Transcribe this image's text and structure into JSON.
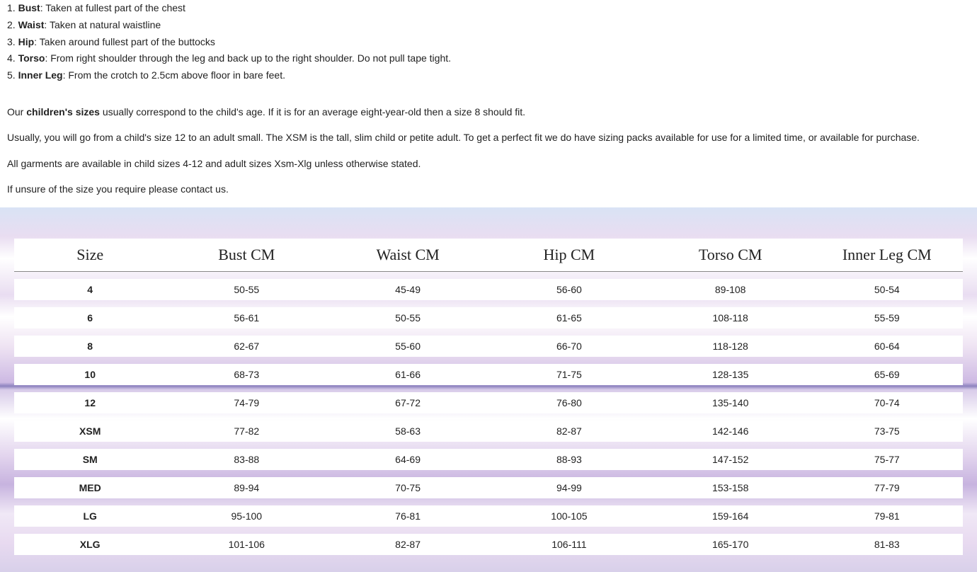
{
  "measurements": [
    {
      "num": "1. ",
      "term": "Bust",
      "sep": ": ",
      "desc": "Taken at fullest part of the chest"
    },
    {
      "num": "2. ",
      "term": "Waist",
      "sep": ": ",
      "desc": "Taken at natural waistline"
    },
    {
      "num": "3. ",
      "term": "Hip",
      "sep": ": ",
      "desc": "Taken around fullest part of the buttocks"
    },
    {
      "num": "4. ",
      "term": "Torso",
      "sep": ": ",
      "desc": "From right shoulder through the leg and back up to the right shoulder. Do not pull tape tight."
    },
    {
      "num": "5. ",
      "term": "Inner Leg",
      "sep": ": ",
      "desc": "From the crotch to 2.5cm above floor in bare feet."
    }
  ],
  "para1": {
    "pre": "Our ",
    "bold": "children's sizes",
    "post": " usually correspond to the child's age. If it is for an average eight-year-old then a size 8 should fit."
  },
  "para2": "Usually, you will go from a child's size 12 to an adult small. The XSM is the tall, slim child or petite adult. To get a perfect fit we do have sizing packs available for use for a limited time, or available for purchase.",
  "para3": "All garments are available in child sizes 4-12 and adult sizes Xsm-Xlg unless otherwise stated.",
  "para4": "If unsure of the size you require please contact us.",
  "size_table": {
    "type": "table",
    "columns": [
      "Size",
      "Bust CM",
      "Waist CM",
      "Hip CM",
      "Torso CM",
      "Inner Leg CM"
    ],
    "rows": [
      [
        "4",
        "50-55",
        "45-49",
        "56-60",
        "89-108",
        "50-54"
      ],
      [
        "6",
        "56-61",
        "50-55",
        "61-65",
        "108-118",
        "55-59"
      ],
      [
        "8",
        "62-67",
        "55-60",
        "66-70",
        "118-128",
        "60-64"
      ],
      [
        "10",
        "68-73",
        "61-66",
        "71-75",
        "128-135",
        "65-69"
      ],
      [
        "12",
        "74-79",
        "67-72",
        "76-80",
        "135-140",
        "70-74"
      ],
      [
        "XSM",
        "77-82",
        "58-63",
        "82-87",
        "142-146",
        "73-75"
      ],
      [
        "SM",
        "83-88",
        "64-69",
        "88-93",
        "147-152",
        "75-77"
      ],
      [
        "MED",
        "89-94",
        "70-75",
        "94-99",
        "153-158",
        "77-79"
      ],
      [
        "LG",
        "95-100",
        "76-81",
        "100-105",
        "159-164",
        "79-81"
      ],
      [
        "XLG",
        "101-106",
        "82-87",
        "106-111",
        "165-170",
        "81-83"
      ]
    ],
    "header_font": "Georgia serif",
    "header_fontsize": 22,
    "cell_fontsize": 14,
    "cell_bg": "#ffffff",
    "size_col_bold": true,
    "background_gradient_colors": [
      "#d9e3f5",
      "#e9ddf1",
      "#efe4f3",
      "#cdb9e3",
      "#8d83bf",
      "#d8cbe9",
      "#e3d5ee",
      "#c7b3df"
    ]
  }
}
